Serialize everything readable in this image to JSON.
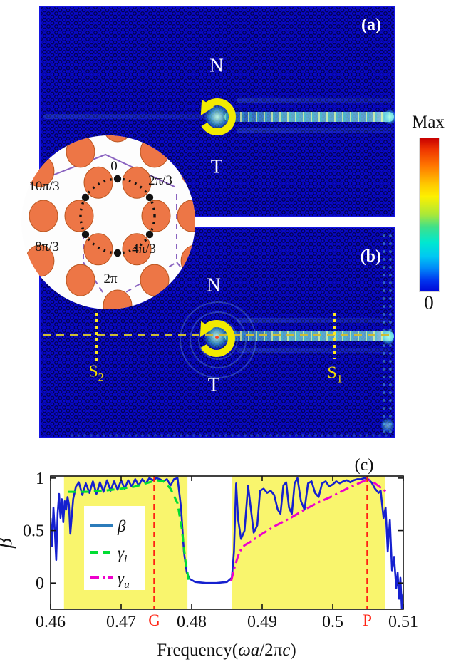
{
  "figure": {
    "panels": {
      "a": {
        "label": "(a)",
        "region_top": "N",
        "region_bottom": "T"
      },
      "b": {
        "label": "(b)",
        "region_top": "N",
        "region_bottom": "T",
        "probe_right": {
          "main": "S",
          "sub": "1"
        },
        "probe_left": {
          "main": "S",
          "sub": "2"
        }
      }
    },
    "colorbar": {
      "top_label": "Max",
      "bottom_label": "0"
    },
    "inset": {
      "phase_labels": [
        "0",
        "2π/3",
        "4π/3",
        "2π",
        "8π/3",
        "10π/3"
      ],
      "rod_color": "#ed7646",
      "outline_color": "#8a63c0"
    },
    "annotation_color": "#f2ea00"
  },
  "chart_data": {
    "type": "line",
    "panel_label": "(c)",
    "xlabel_parts": [
      {
        "t": "Frequency(",
        "i": false
      },
      {
        "t": "ωa",
        "i": true
      },
      {
        "t": "/2π",
        "i": false
      },
      {
        "t": "c",
        "i": true
      },
      {
        "t": ")",
        "i": false
      }
    ],
    "ylabel": "β",
    "xlim": [
      0.46,
      0.51
    ],
    "ylim": [
      -0.25,
      1.02
    ],
    "grid": false,
    "xticks": {
      "values": [
        0.46,
        0.47,
        0.48,
        0.49,
        0.5,
        0.51
      ],
      "labels": [
        "0.46",
        "0.47",
        "0.48",
        "0.49",
        "0.5",
        "0.51"
      ]
    },
    "yticks": {
      "values": [
        0,
        0.5,
        1
      ],
      "labels": [
        "0",
        "0.5",
        "1"
      ]
    },
    "bands": {
      "color": "#f9f56d",
      "ranges": [
        [
          0.4619,
          0.4794
        ],
        [
          0.4857,
          0.5074
        ]
      ]
    },
    "vlines": {
      "color": "#ff2212",
      "style": "dashed",
      "items": [
        {
          "x": 0.4747,
          "label": "G"
        },
        {
          "x": 0.5049,
          "label": "P"
        }
      ]
    },
    "legend": {
      "position": "left-center"
    },
    "series": [
      {
        "name": "beta",
        "legend_main": "β",
        "legend_sub": "",
        "color": "#1520cf",
        "legend_color": "#2b7bba",
        "style": "solid",
        "width": 2.6,
        "points": [
          [
            0.46,
            0.62
          ],
          [
            0.4602,
            0.35
          ],
          [
            0.4604,
            0.72
          ],
          [
            0.4606,
            0.5
          ],
          [
            0.4608,
            0.22
          ],
          [
            0.461,
            0.66
          ],
          [
            0.4612,
            0.85
          ],
          [
            0.4614,
            0.62
          ],
          [
            0.4616,
            0.8
          ],
          [
            0.4618,
            0.58
          ],
          [
            0.462,
            0.78
          ],
          [
            0.4622,
            0.7
          ],
          [
            0.4624,
            0.82
          ],
          [
            0.4626,
            0.75
          ],
          [
            0.4628,
            0.47
          ],
          [
            0.4632,
            0.8
          ],
          [
            0.4636,
            0.92
          ],
          [
            0.464,
            0.96
          ],
          [
            0.4645,
            0.84
          ],
          [
            0.465,
            0.95
          ],
          [
            0.4655,
            0.86
          ],
          [
            0.466,
            0.97
          ],
          [
            0.4665,
            0.85
          ],
          [
            0.467,
            0.96
          ],
          [
            0.4675,
            0.87
          ],
          [
            0.468,
            0.98
          ],
          [
            0.4685,
            0.88
          ],
          [
            0.469,
            0.97
          ],
          [
            0.4695,
            0.89
          ],
          [
            0.47,
            0.98
          ],
          [
            0.4705,
            0.9
          ],
          [
            0.471,
            0.98
          ],
          [
            0.4715,
            0.92
          ],
          [
            0.472,
            0.99
          ],
          [
            0.4725,
            0.93
          ],
          [
            0.473,
            0.99
          ],
          [
            0.4735,
            0.95
          ],
          [
            0.474,
            1.0
          ],
          [
            0.4745,
            0.98
          ],
          [
            0.475,
            1.0
          ],
          [
            0.4755,
            0.99
          ],
          [
            0.476,
            0.97
          ],
          [
            0.4765,
            0.99
          ],
          [
            0.477,
            0.93
          ],
          [
            0.4775,
            0.99
          ],
          [
            0.478,
            1.0
          ],
          [
            0.4785,
            0.72
          ],
          [
            0.4789,
            0.3
          ],
          [
            0.4793,
            0.1
          ],
          [
            0.4797,
            0.04
          ],
          [
            0.4805,
            0.01
          ],
          [
            0.482,
            0.0
          ],
          [
            0.4835,
            0.0
          ],
          [
            0.485,
            0.01
          ],
          [
            0.4857,
            0.05
          ],
          [
            0.486,
            0.3
          ],
          [
            0.4863,
            0.95
          ],
          [
            0.4866,
            0.6
          ],
          [
            0.487,
            0.42
          ],
          [
            0.4875,
            0.5
          ],
          [
            0.488,
            0.93
          ],
          [
            0.4884,
            0.7
          ],
          [
            0.4888,
            0.48
          ],
          [
            0.4893,
            0.55
          ],
          [
            0.4897,
            0.88
          ],
          [
            0.4902,
            0.9
          ],
          [
            0.4907,
            0.86
          ],
          [
            0.4912,
            0.88
          ],
          [
            0.4917,
            0.84
          ],
          [
            0.4922,
            0.7
          ],
          [
            0.4926,
            0.66
          ],
          [
            0.493,
            0.93
          ],
          [
            0.4934,
            0.96
          ],
          [
            0.4938,
            0.72
          ],
          [
            0.4942,
            0.66
          ],
          [
            0.4946,
            0.95
          ],
          [
            0.495,
            1.0
          ],
          [
            0.4955,
            0.78
          ],
          [
            0.496,
            0.7
          ],
          [
            0.4965,
            0.95
          ],
          [
            0.497,
            0.97
          ],
          [
            0.4975,
            0.86
          ],
          [
            0.498,
            0.82
          ],
          [
            0.4985,
            0.95
          ],
          [
            0.499,
            0.97
          ],
          [
            0.4995,
            0.92
          ],
          [
            0.5,
            0.94
          ],
          [
            0.5005,
            0.97
          ],
          [
            0.501,
            0.95
          ],
          [
            0.5015,
            0.97
          ],
          [
            0.502,
            0.98
          ],
          [
            0.5025,
            0.96
          ],
          [
            0.503,
            0.98
          ],
          [
            0.5035,
            0.99
          ],
          [
            0.504,
            0.99
          ],
          [
            0.5045,
            1.0
          ],
          [
            0.505,
            0.99
          ],
          [
            0.5055,
            0.96
          ],
          [
            0.506,
            0.9
          ],
          [
            0.5065,
            0.86
          ],
          [
            0.5068,
            0.88
          ],
          [
            0.5072,
            0.62
          ],
          [
            0.5075,
            0.72
          ],
          [
            0.5078,
            0.3
          ],
          [
            0.5081,
            0.6
          ],
          [
            0.5084,
            0.12
          ],
          [
            0.5087,
            0.25
          ],
          [
            0.509,
            -0.05
          ],
          [
            0.5092,
            0.1
          ],
          [
            0.5094,
            -0.15
          ],
          [
            0.5096,
            0.05
          ],
          [
            0.5098,
            -0.25
          ],
          [
            0.51,
            -0.1
          ]
        ]
      },
      {
        "name": "gamma_l",
        "legend_main": "γ",
        "legend_sub": "l",
        "color": "#00dd33",
        "legend_color": "#00dd33",
        "style": "dashed",
        "width": 3,
        "points": [
          [
            0.4625,
            0.87
          ],
          [
            0.465,
            0.87
          ],
          [
            0.4675,
            0.88
          ],
          [
            0.47,
            0.9
          ],
          [
            0.472,
            0.92
          ],
          [
            0.474,
            0.96
          ],
          [
            0.475,
            0.98
          ],
          [
            0.476,
            0.97
          ],
          [
            0.477,
            0.9
          ],
          [
            0.478,
            0.76
          ],
          [
            0.4786,
            0.52
          ],
          [
            0.4791,
            0.22
          ],
          [
            0.4796,
            0.02
          ]
        ]
      },
      {
        "name": "gamma_u",
        "legend_main": "γ",
        "legend_sub": "u",
        "color": "#ee00cc",
        "legend_color": "#ee00cc",
        "style": "dashdot",
        "width": 3,
        "points": [
          [
            0.4856,
            0.02
          ],
          [
            0.4862,
            0.18
          ],
          [
            0.4868,
            0.3
          ],
          [
            0.4875,
            0.36
          ],
          [
            0.4885,
            0.4
          ],
          [
            0.49,
            0.47
          ],
          [
            0.492,
            0.55
          ],
          [
            0.494,
            0.62
          ],
          [
            0.496,
            0.7
          ],
          [
            0.498,
            0.77
          ],
          [
            0.5,
            0.83
          ],
          [
            0.502,
            0.9
          ],
          [
            0.504,
            0.96
          ],
          [
            0.505,
            0.99
          ],
          [
            0.506,
            0.95
          ],
          [
            0.507,
            0.9
          ],
          [
            0.5078,
            0.86
          ]
        ]
      }
    ]
  }
}
